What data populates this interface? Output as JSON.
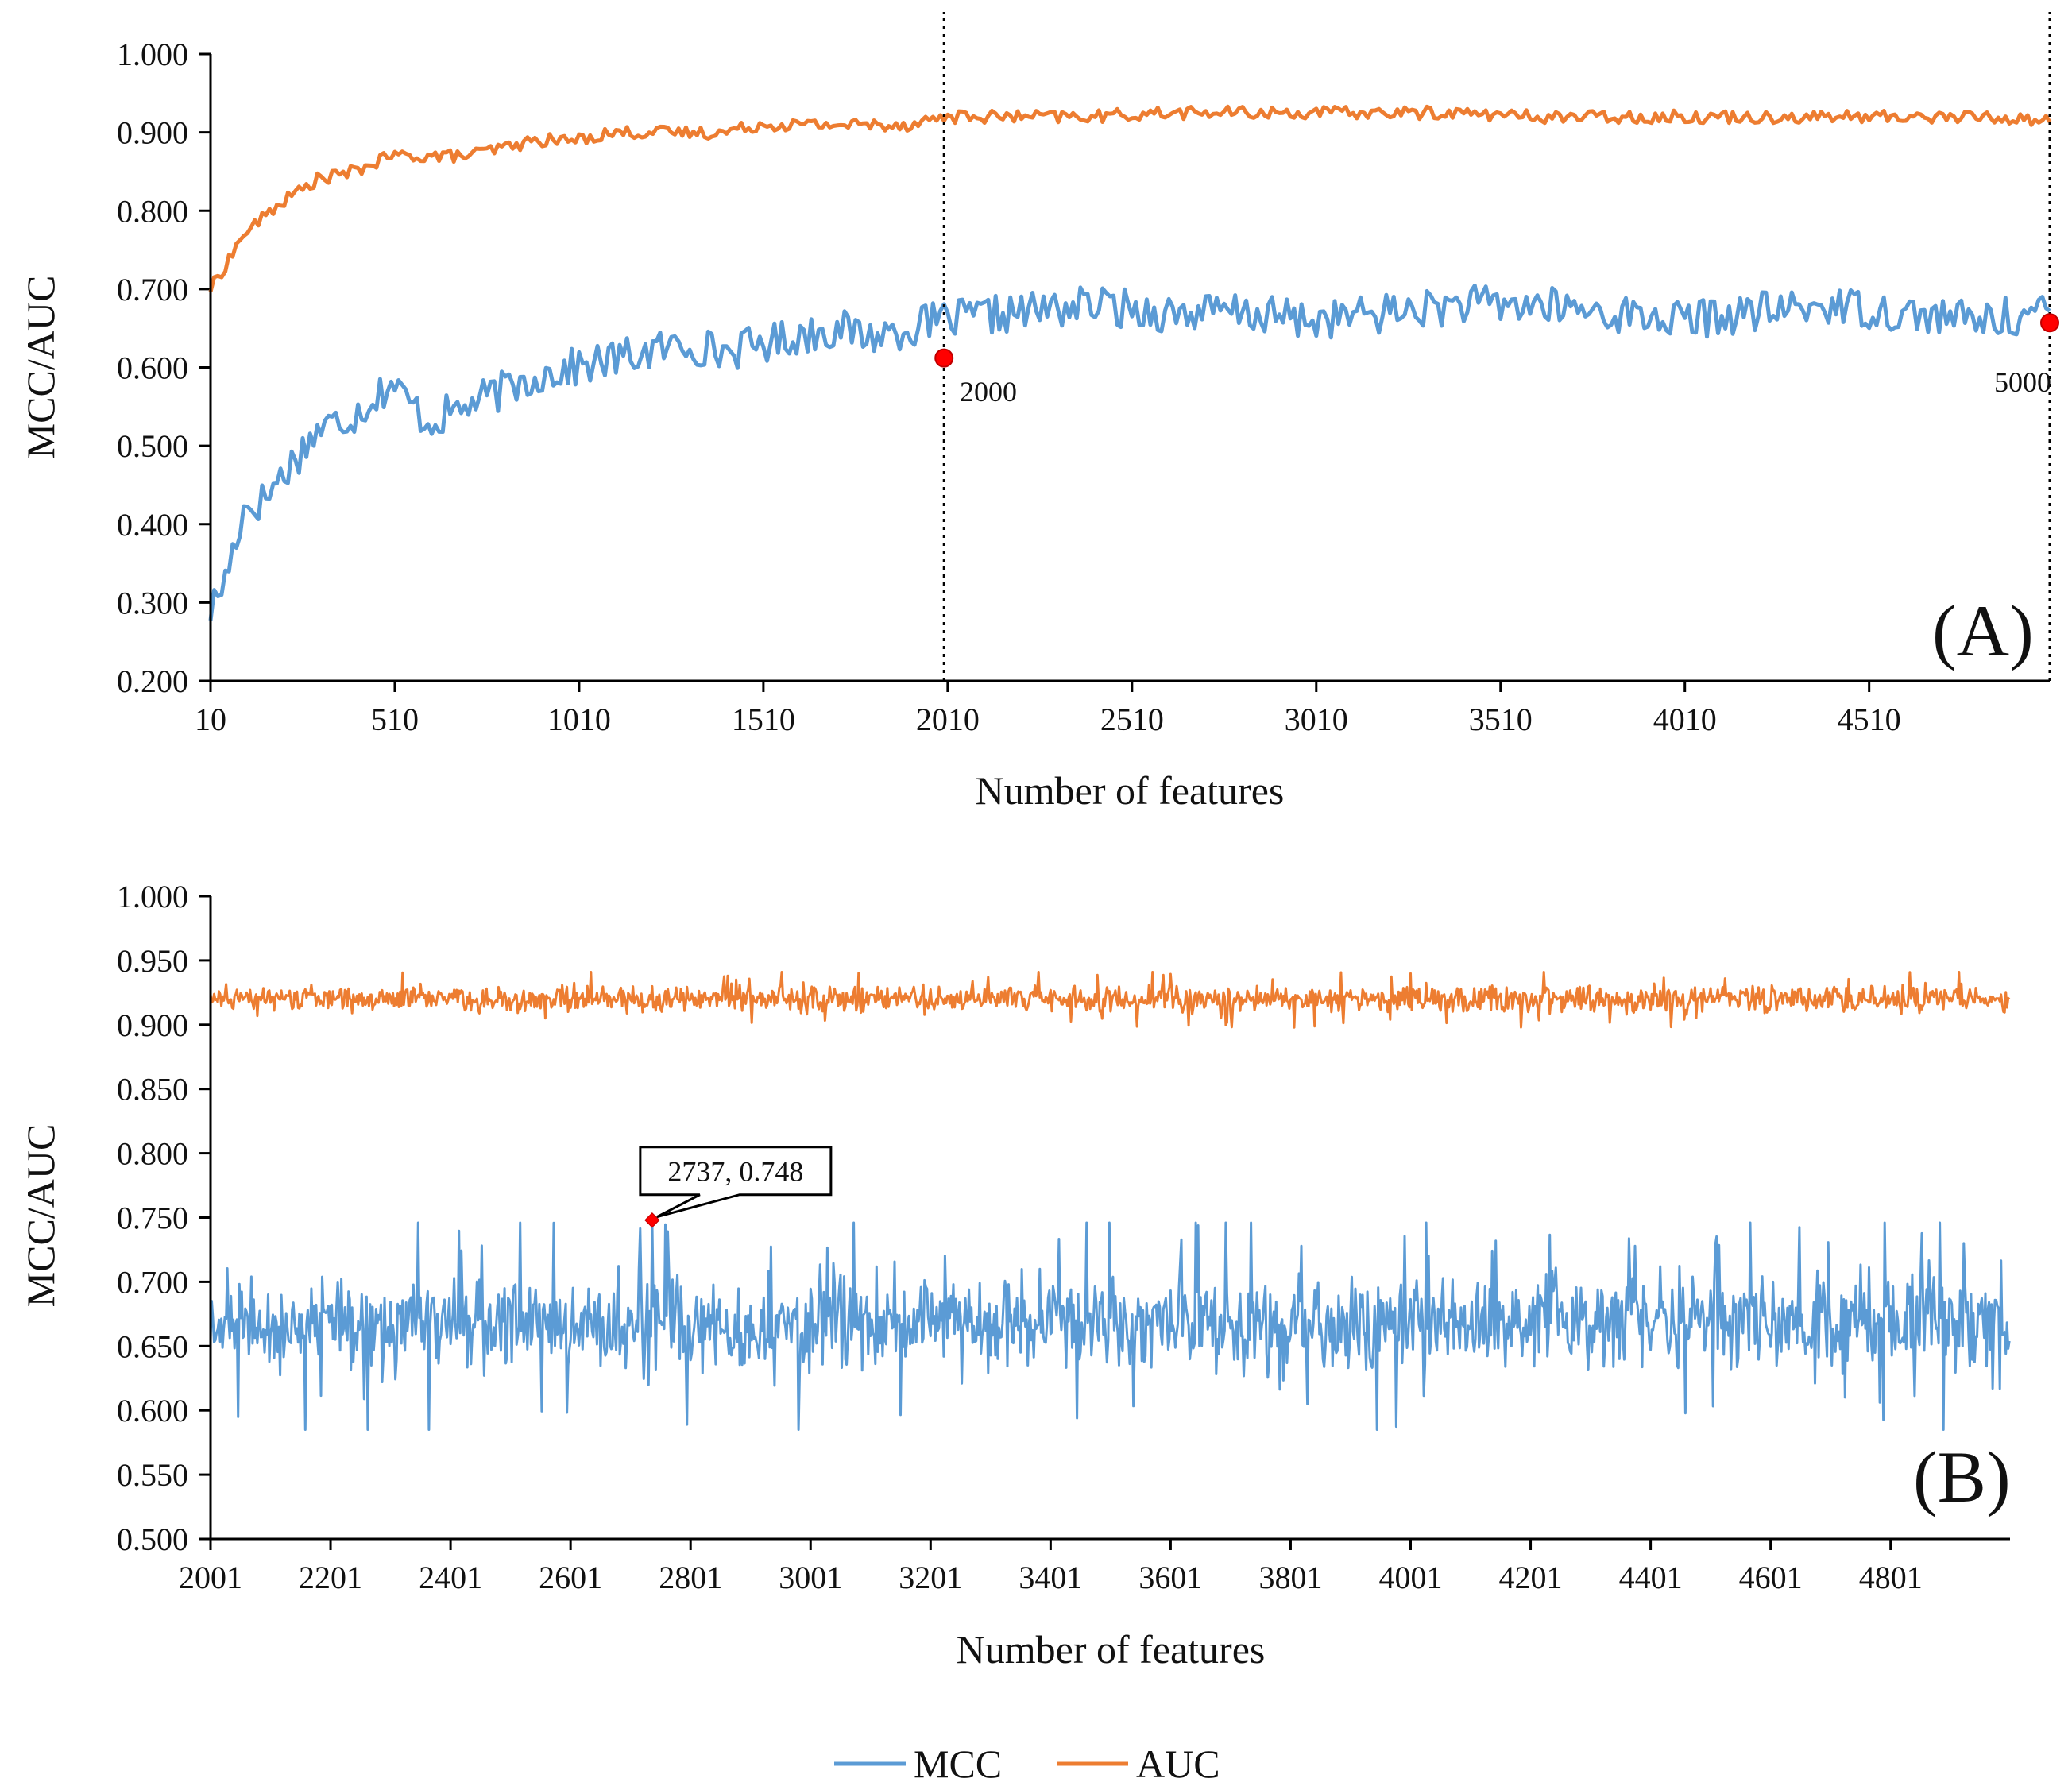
{
  "chart_data": [
    {
      "panel": "(A)",
      "type": "line",
      "xlabel": "Number of features",
      "ylabel": "MCC/AUC",
      "xlim": [
        10,
        5000
      ],
      "ylim": [
        0.2,
        1.0
      ],
      "x_ticks": [
        "10",
        "510",
        "1010",
        "1510",
        "2010",
        "2510",
        "3010",
        "3510",
        "4010",
        "4510"
      ],
      "y_ticks": [
        "0.200",
        "0.300",
        "0.400",
        "0.500",
        "0.600",
        "0.700",
        "0.800",
        "0.900",
        "1.000"
      ],
      "reference_lines_x": [
        2000,
        5000
      ],
      "series": [
        {
          "name": "MCC",
          "color": "#5B9BD5",
          "x": [
            10,
            50,
            100,
            150,
            200,
            300,
            400,
            500,
            600,
            700,
            800,
            900,
            1000,
            1100,
            1200,
            1300,
            1400,
            1500,
            1600,
            1700,
            1800,
            1900,
            2000,
            2200,
            2400,
            2600,
            2800,
            3000,
            3200,
            3400,
            3600,
            3800,
            4000,
            4200,
            4400,
            4600,
            4800,
            5000
          ],
          "values": [
            0.29,
            0.33,
            0.42,
            0.43,
            0.46,
            0.52,
            0.54,
            0.58,
            0.53,
            0.55,
            0.57,
            0.59,
            0.6,
            0.61,
            0.62,
            0.63,
            0.62,
            0.63,
            0.64,
            0.65,
            0.64,
            0.65,
            0.66,
            0.67,
            0.68,
            0.67,
            0.67,
            0.66,
            0.67,
            0.68,
            0.68,
            0.67,
            0.66,
            0.67,
            0.68,
            0.67,
            0.66,
            0.67
          ],
          "noise": 0.025
        },
        {
          "name": "AUC",
          "color": "#ED7D31",
          "x": [
            10,
            50,
            100,
            150,
            200,
            300,
            400,
            500,
            600,
            700,
            800,
            900,
            1000,
            1100,
            1200,
            1300,
            1400,
            1500,
            1600,
            1700,
            1800,
            1900,
            2000,
            2200,
            2400,
            2600,
            2800,
            3000,
            3200,
            3400,
            3600,
            3800,
            4000,
            4200,
            4400,
            4600,
            4800,
            5000
          ],
          "values": [
            0.7,
            0.73,
            0.77,
            0.79,
            0.81,
            0.84,
            0.85,
            0.87,
            0.87,
            0.87,
            0.88,
            0.89,
            0.89,
            0.9,
            0.9,
            0.9,
            0.9,
            0.91,
            0.91,
            0.91,
            0.91,
            0.91,
            0.92,
            0.92,
            0.92,
            0.925,
            0.925,
            0.925,
            0.925,
            0.925,
            0.92,
            0.92,
            0.92,
            0.92,
            0.92,
            0.92,
            0.92,
            0.915
          ],
          "noise": 0.008
        }
      ],
      "highlights": [
        {
          "x": 2000,
          "y": 0.612,
          "label": "2000"
        },
        {
          "x": 5000,
          "y": 0.657,
          "label": "5000"
        }
      ]
    },
    {
      "panel": "(B)",
      "type": "line",
      "xlabel": "Number of features",
      "ylabel": "MCC/AUC",
      "xlim": [
        2001,
        5000
      ],
      "ylim": [
        0.5,
        1.0
      ],
      "x_ticks": [
        "2001",
        "2201",
        "2401",
        "2601",
        "2801",
        "3001",
        "3201",
        "3401",
        "3601",
        "3801",
        "4001",
        "4201",
        "4401",
        "4601",
        "4801"
      ],
      "y_ticks": [
        "0.500",
        "0.550",
        "0.600",
        "0.650",
        "0.700",
        "0.750",
        "0.800",
        "0.850",
        "0.900",
        "0.950",
        "1.000"
      ],
      "series": [
        {
          "name": "MCC",
          "color": "#5B9BD5",
          "mean": 0.668,
          "spread": 0.035,
          "range": [
            0.585,
            0.748
          ]
        },
        {
          "name": "AUC",
          "color": "#ED7D31",
          "mean": 0.92,
          "spread": 0.009,
          "range": [
            0.895,
            0.943
          ]
        }
      ],
      "annotation": {
        "x": 2737,
        "y": 0.748,
        "label": "2737, 0.748"
      }
    }
  ],
  "legend": [
    {
      "label": "MCC",
      "color": "#5B9BD5"
    },
    {
      "label": "AUC",
      "color": "#ED7D31"
    }
  ]
}
